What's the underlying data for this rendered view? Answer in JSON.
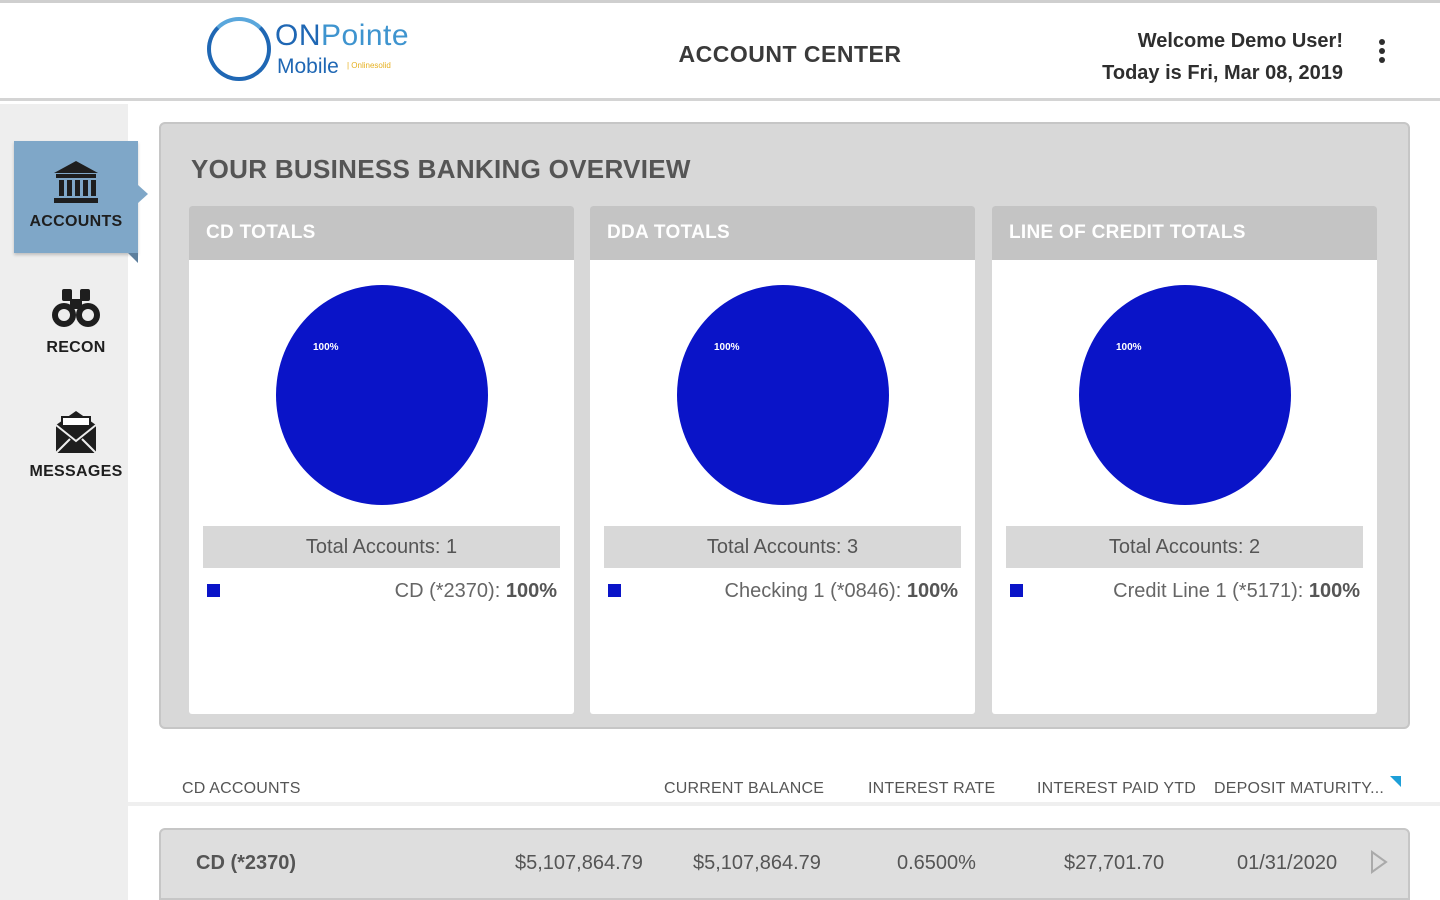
{
  "header": {
    "logo": {
      "on": "ON",
      "pointe": "Pointe",
      "mobile": "Mobile",
      "tagline": "| Onlinesolid"
    },
    "title": "ACCOUNT CENTER",
    "welcome": "Welcome Demo User!",
    "date": "Today is Fri, Mar 08, 2019"
  },
  "sidebar": {
    "items": [
      {
        "label": "ACCOUNTS",
        "icon": "bank-icon",
        "active": true
      },
      {
        "label": "RECON",
        "icon": "binoculars-icon",
        "active": false
      },
      {
        "label": "MESSAGES",
        "icon": "envelope-icon",
        "active": false
      }
    ]
  },
  "overview": {
    "title": "YOUR BUSINESS BANKING OVERVIEW",
    "cards": [
      {
        "title": "CD TOTALS",
        "pie_label": "100%",
        "total": "Total Accounts: 1",
        "legend_account": "CD (*2370):",
        "legend_pct": "100%"
      },
      {
        "title": "DDA TOTALS",
        "pie_label": "100%",
        "total": "Total Accounts: 3",
        "legend_account": "Checking 1 (*0846):",
        "legend_pct": "100%"
      },
      {
        "title": "LINE OF CREDIT TOTALS",
        "pie_label": "100%",
        "total": "Total Accounts: 2",
        "legend_account": "Credit Line 1 (*5171):",
        "legend_pct": "100%"
      }
    ]
  },
  "chart_data": [
    {
      "type": "pie",
      "title": "CD TOTALS",
      "categories": [
        "CD (*2370)"
      ],
      "values": [
        100
      ],
      "colors": [
        "#0a14c8"
      ]
    },
    {
      "type": "pie",
      "title": "DDA TOTALS",
      "categories": [
        "Checking 1 (*0846)"
      ],
      "values": [
        100
      ],
      "colors": [
        "#0a14c8"
      ]
    },
    {
      "type": "pie",
      "title": "LINE OF CREDIT TOTALS",
      "categories": [
        "Credit Line 1 (*5171)"
      ],
      "values": [
        100
      ],
      "colors": [
        "#0a14c8"
      ]
    }
  ],
  "table": {
    "headers": [
      "CD ACCOUNTS",
      "CURRENT BALANCE",
      "INTEREST RATE",
      "INTEREST PAID YTD",
      "DEPOSIT MATURITY..."
    ],
    "rows": [
      {
        "account": "CD (*2370)",
        "amount": "$5,107,864.79",
        "current_balance": "$5,107,864.79",
        "interest_rate": "0.6500%",
        "interest_paid_ytd": "$27,701.70",
        "maturity": "01/31/2020"
      }
    ]
  },
  "colors": {
    "pie": "#0a14c8",
    "active_nav": "#7fa7c8",
    "brand_blue": "#1f67b4",
    "sort_flag": "#1e9fd8"
  }
}
